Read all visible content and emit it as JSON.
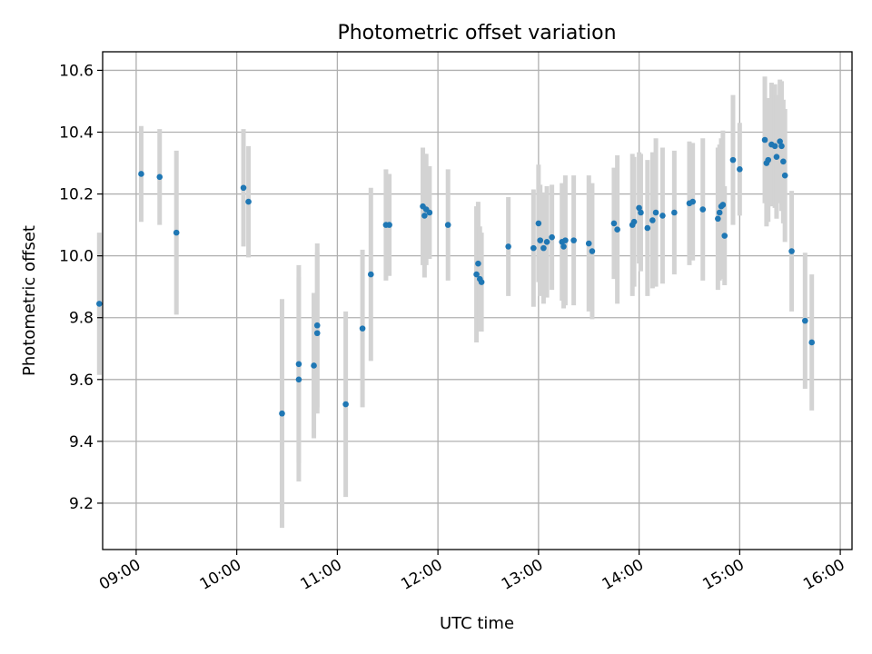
{
  "chart_data": {
    "type": "scatter",
    "title": "Photometric offset variation",
    "xlabel": "UTC time",
    "ylabel": "Photometric offset",
    "xlim": [
      "08:40",
      "16:07"
    ],
    "ylim": [
      9.05,
      10.66
    ],
    "x_ticks": [
      "09:00",
      "10:00",
      "11:00",
      "12:00",
      "13:00",
      "14:00",
      "15:00",
      "16:00"
    ],
    "y_ticks": [
      9.2,
      9.4,
      9.6,
      9.8,
      10.0,
      10.2,
      10.4,
      10.6
    ],
    "grid": true,
    "colors": {
      "point": "#1f77b4",
      "errorbar": "#d3d3d3",
      "grid": "#b0b0b0"
    },
    "series": [
      {
        "x": [
          "08:38",
          "09:03",
          "09:14",
          "09:24",
          "10:04",
          "10:07",
          "10:27",
          "10:37",
          "10:37",
          "10:46",
          "10:48",
          "10:48",
          "11:05",
          "11:15",
          "11:20",
          "11:29",
          "11:31",
          "11:51",
          "11:52",
          "11:53",
          "11:55",
          "12:06",
          "12:23",
          "12:24",
          "12:25",
          "12:26",
          "12:42",
          "12:57",
          "13:00",
          "13:01",
          "13:03",
          "13:05",
          "13:08",
          "13:14",
          "13:15",
          "13:16",
          "13:21",
          "13:30",
          "13:32",
          "13:45",
          "13:47",
          "13:56",
          "13:57",
          "14:00",
          "14:01",
          "14:05",
          "14:08",
          "14:10",
          "14:14",
          "14:21",
          "14:30",
          "14:32",
          "14:38",
          "14:47",
          "14:48",
          "14:49",
          "14:50",
          "14:51",
          "14:56",
          "15:00",
          "15:15",
          "15:16",
          "15:17",
          "15:19",
          "15:21",
          "15:22",
          "15:24",
          "15:25",
          "15:26",
          "15:27",
          "15:31",
          "15:39",
          "15:43"
        ],
        "y": [
          9.845,
          10.265,
          10.255,
          10.075,
          10.22,
          10.175,
          9.49,
          9.65,
          9.6,
          9.645,
          9.775,
          9.75,
          9.52,
          9.765,
          9.94,
          10.1,
          10.1,
          10.16,
          10.13,
          10.15,
          10.14,
          10.1,
          9.94,
          9.975,
          9.925,
          9.915,
          10.03,
          10.025,
          10.105,
          10.05,
          10.025,
          10.045,
          10.06,
          10.045,
          10.03,
          10.05,
          10.05,
          10.04,
          10.015,
          10.105,
          10.085,
          10.1,
          10.11,
          10.155,
          10.14,
          10.09,
          10.115,
          10.14,
          10.13,
          10.14,
          10.17,
          10.175,
          10.15,
          10.12,
          10.14,
          10.16,
          10.165,
          10.065,
          10.31,
          10.28,
          10.375,
          10.3,
          10.31,
          10.36,
          10.355,
          10.32,
          10.37,
          10.355,
          10.305,
          10.26,
          10.015,
          9.79,
          9.72
        ],
        "err": [
          0.23,
          0.155,
          0.155,
          0.265,
          0.19,
          0.18,
          0.37,
          0.32,
          0.33,
          0.235,
          0.265,
          0.26,
          0.3,
          0.255,
          0.28,
          0.18,
          0.165,
          0.19,
          0.2,
          0.18,
          0.15,
          0.18,
          0.22,
          0.2,
          0.17,
          0.16,
          0.16,
          0.19,
          0.19,
          0.18,
          0.18,
          0.18,
          0.17,
          0.19,
          0.2,
          0.21,
          0.21,
          0.22,
          0.22,
          0.18,
          0.24,
          0.23,
          0.21,
          0.18,
          0.19,
          0.22,
          0.22,
          0.24,
          0.22,
          0.2,
          0.2,
          0.19,
          0.23,
          0.23,
          0.22,
          0.22,
          0.24,
          0.16,
          0.21,
          0.15,
          0.205,
          0.205,
          0.2,
          0.2,
          0.2,
          0.2,
          0.2,
          0.21,
          0.2,
          0.215,
          0.195,
          0.22,
          0.22
        ]
      }
    ]
  }
}
